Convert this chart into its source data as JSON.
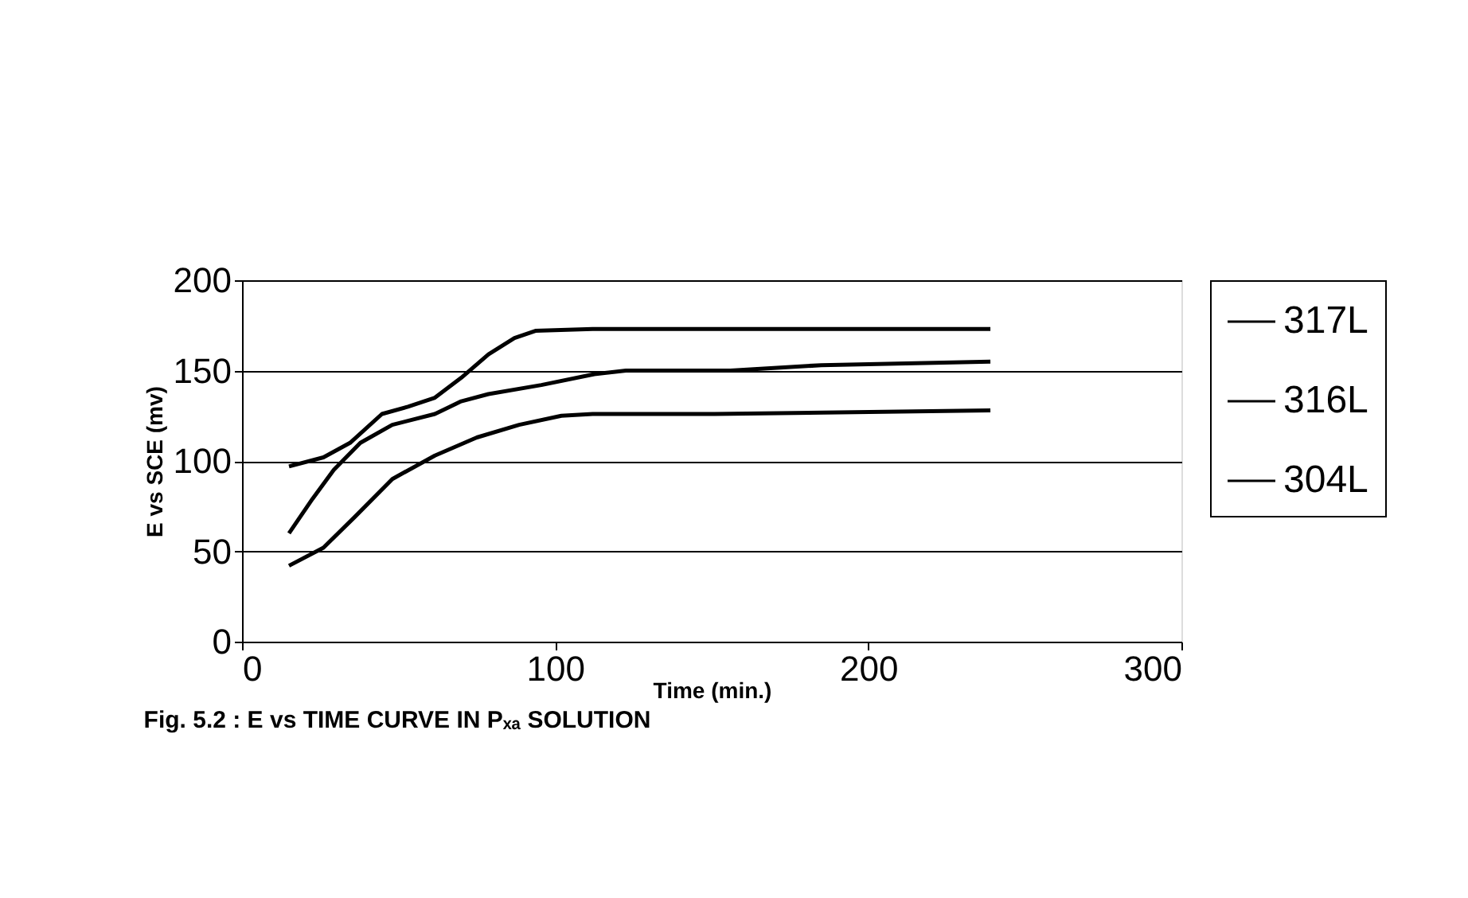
{
  "chart_data": {
    "type": "line",
    "xlabel": "Time (min.)",
    "ylabel": "E vs SCE (mv)",
    "annotations": [
      "Fig. 5.2 : E vs TIME CURVE IN Pₓₐ SOLUTION"
    ],
    "xlim": [
      0,
      300
    ],
    "xticks": [
      0,
      100,
      200,
      300
    ],
    "ylim": [
      0,
      200
    ],
    "yticks": [
      0,
      50,
      100,
      150,
      200
    ],
    "grid": "y",
    "legend": "right",
    "marker": "none",
    "line_style": "solid",
    "series": [
      {
        "name": "317L",
        "color": "#000000",
        "x": [
          15,
          26,
          34.5,
          44.7,
          53,
          61.6,
          70,
          78.7,
          87,
          93.7,
          112,
          156,
          239
        ],
        "values": [
          97,
          102,
          110,
          126,
          130,
          135,
          146,
          159,
          168,
          172,
          173,
          173,
          173
        ]
      },
      {
        "name": "316L",
        "color": "#000000",
        "x": [
          15,
          22.5,
          29.3,
          37.8,
          48,
          61.6,
          70,
          78.7,
          95.6,
          112.5,
          122.6,
          156,
          185,
          239
        ],
        "values": [
          60,
          79,
          95,
          110,
          120,
          126,
          133,
          137,
          142,
          148,
          150,
          150,
          153,
          155
        ]
      },
      {
        "name": "304L",
        "color": "#000000",
        "x": [
          15,
          26,
          36,
          48,
          61.6,
          75,
          88.5,
          102,
          112,
          151,
          239
        ],
        "values": [
          42,
          52,
          69,
          90,
          103,
          113,
          120,
          125,
          126,
          126,
          128
        ]
      }
    ]
  }
}
